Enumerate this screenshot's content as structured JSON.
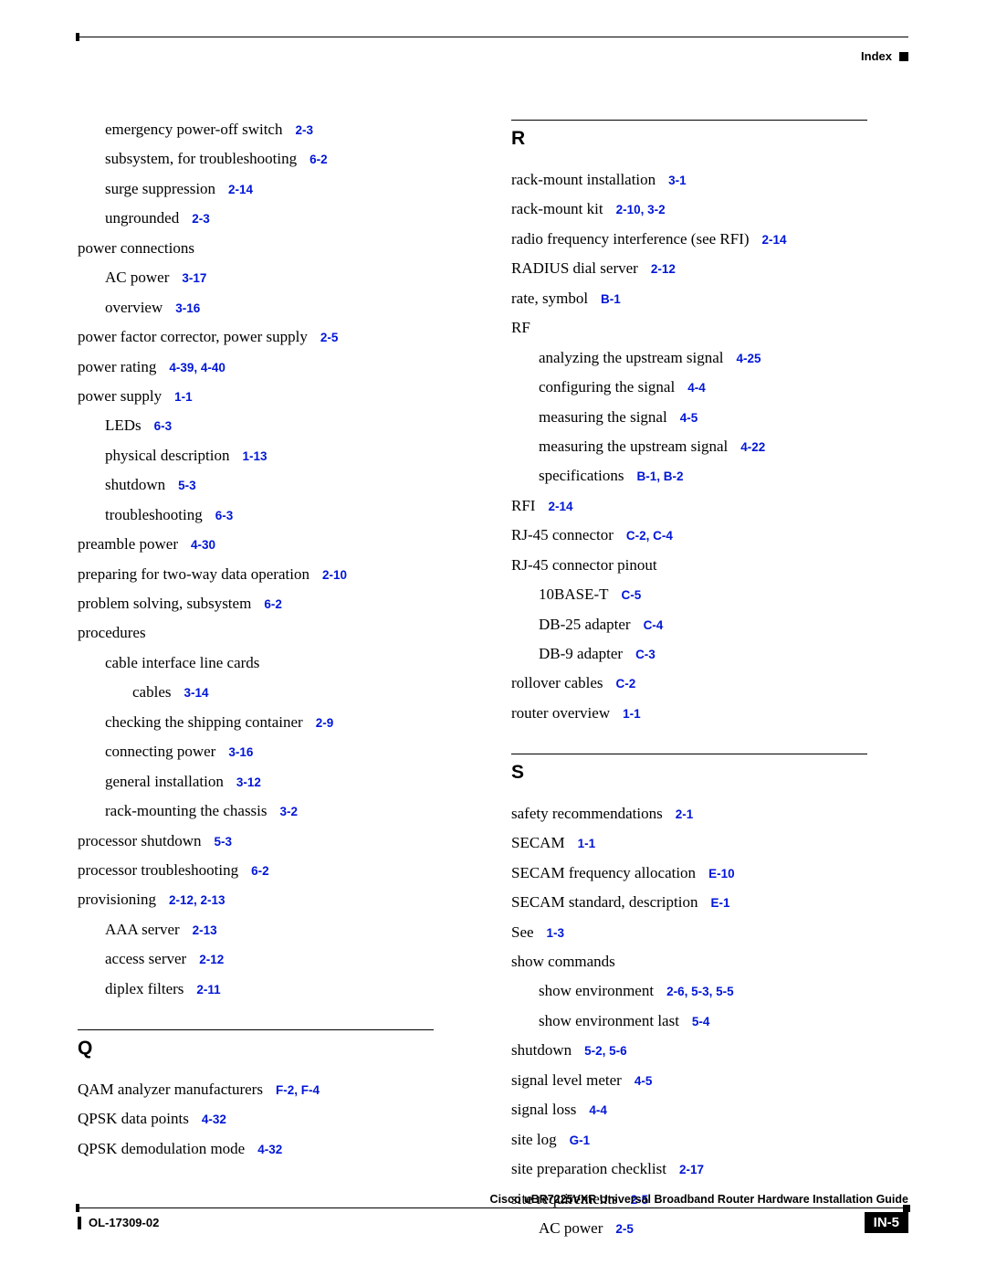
{
  "header": {
    "label": "Index"
  },
  "link_color": "#0016d8",
  "text_color": "#000000",
  "letters": {
    "Q": "Q",
    "R": "R",
    "S": "S"
  },
  "left_initial": [
    {
      "text": "emergency power-off switch",
      "ref": "2-3",
      "indent": 1
    },
    {
      "text": "subsystem, for troubleshooting",
      "ref": "6-2",
      "indent": 1
    },
    {
      "text": "surge suppression",
      "ref": "2-14",
      "indent": 1
    },
    {
      "text": "ungrounded",
      "ref": "2-3",
      "indent": 1
    },
    {
      "text": "power connections",
      "ref": "",
      "indent": 0
    },
    {
      "text": "AC power",
      "ref": "3-17",
      "indent": 1
    },
    {
      "text": "overview",
      "ref": "3-16",
      "indent": 1
    },
    {
      "text": "power factor corrector, power supply",
      "ref": "2-5",
      "indent": 0
    },
    {
      "text": "power rating",
      "ref": "4-39, 4-40",
      "indent": 0
    },
    {
      "text": "power supply",
      "ref": "1-1",
      "indent": 0
    },
    {
      "text": "LEDs",
      "ref": "6-3",
      "indent": 1
    },
    {
      "text": "physical description",
      "ref": "1-13",
      "indent": 1
    },
    {
      "text": "shutdown",
      "ref": "5-3",
      "indent": 1
    },
    {
      "text": "troubleshooting",
      "ref": "6-3",
      "indent": 1
    },
    {
      "text": "preamble power",
      "ref": "4-30",
      "indent": 0
    },
    {
      "text": "preparing for two-way data operation",
      "ref": "2-10",
      "indent": 0
    },
    {
      "text": "problem solving, subsystem",
      "ref": "6-2",
      "indent": 0
    },
    {
      "text": "procedures",
      "ref": "",
      "indent": 0
    },
    {
      "text": "cable interface line cards",
      "ref": "",
      "indent": 1
    },
    {
      "text": "cables",
      "ref": "3-14",
      "indent": 2
    },
    {
      "text": "checking the shipping container",
      "ref": "2-9",
      "indent": 1
    },
    {
      "text": "connecting power",
      "ref": "3-16",
      "indent": 1
    },
    {
      "text": "general installation",
      "ref": "3-12",
      "indent": 1
    },
    {
      "text": "rack-mounting the chassis",
      "ref": "3-2",
      "indent": 1
    },
    {
      "text": "processor shutdown",
      "ref": "5-3",
      "indent": 0
    },
    {
      "text": "processor troubleshooting",
      "ref": "6-2",
      "indent": 0
    },
    {
      "text": "provisioning",
      "ref": "2-12, 2-13",
      "indent": 0
    },
    {
      "text": "AAA server",
      "ref": "2-13",
      "indent": 1
    },
    {
      "text": "access server",
      "ref": "2-12",
      "indent": 1
    },
    {
      "text": "diplex filters",
      "ref": "2-11",
      "indent": 1
    }
  ],
  "left_Q": [
    {
      "text": "QAM analyzer manufacturers",
      "ref": "F-2, F-4",
      "indent": 0
    },
    {
      "text": "QPSK data points",
      "ref": "4-32",
      "indent": 0
    },
    {
      "text": "QPSK demodulation mode",
      "ref": "4-32",
      "indent": 0
    }
  ],
  "right_R": [
    {
      "text": "rack-mount installation",
      "ref": "3-1",
      "indent": 0
    },
    {
      "text": "rack-mount kit",
      "ref": "2-10, 3-2",
      "indent": 0
    },
    {
      "text": "radio frequency interference (see RFI)",
      "ref": "2-14",
      "indent": 0
    },
    {
      "text": "RADIUS dial server",
      "ref": "2-12",
      "indent": 0
    },
    {
      "text": "rate, symbol",
      "ref": "B-1",
      "indent": 0
    },
    {
      "text": "RF",
      "ref": "",
      "indent": 0
    },
    {
      "text": "analyzing the upstream signal",
      "ref": "4-25",
      "indent": 1
    },
    {
      "text": "configuring the signal",
      "ref": "4-4",
      "indent": 1
    },
    {
      "text": "measuring the signal",
      "ref": "4-5",
      "indent": 1
    },
    {
      "text": "measuring the upstream signal",
      "ref": "4-22",
      "indent": 1
    },
    {
      "text": "specifications",
      "ref": "B-1, B-2",
      "indent": 1
    },
    {
      "text": "RFI",
      "ref": "2-14",
      "indent": 0
    },
    {
      "text": "RJ-45 connector",
      "ref": "C-2, C-4",
      "indent": 0
    },
    {
      "text": "RJ-45 connector pinout",
      "ref": "",
      "indent": 0
    },
    {
      "text": "10BASE-T",
      "ref": "C-5",
      "indent": 1
    },
    {
      "text": "DB-25 adapter",
      "ref": "C-4",
      "indent": 1
    },
    {
      "text": "DB-9 adapter",
      "ref": "C-3",
      "indent": 1
    },
    {
      "text": "rollover cables",
      "ref": "C-2",
      "indent": 0
    },
    {
      "text": "router overview",
      "ref": "1-1",
      "indent": 0
    }
  ],
  "right_S": [
    {
      "text": "safety recommendations",
      "ref": "2-1",
      "indent": 0
    },
    {
      "text": "SECAM",
      "ref": "1-1",
      "indent": 0
    },
    {
      "text": "SECAM frequency allocation",
      "ref": "E-10",
      "indent": 0
    },
    {
      "text": "SECAM standard, description",
      "ref": "E-1",
      "indent": 0
    },
    {
      "text": "See",
      "ref": "1-3",
      "indent": 0
    },
    {
      "text": "show commands",
      "ref": "",
      "indent": 0
    },
    {
      "text": "show environment",
      "ref": "2-6, 5-3, 5-5",
      "indent": 1
    },
    {
      "text": "show environment last",
      "ref": "5-4",
      "indent": 1
    },
    {
      "text": "shutdown",
      "ref": "5-2, 5-6",
      "indent": 0
    },
    {
      "text": "signal level meter",
      "ref": "4-5",
      "indent": 0
    },
    {
      "text": "signal loss",
      "ref": "4-4",
      "indent": 0
    },
    {
      "text": "site log",
      "ref": "G-1",
      "indent": 0
    },
    {
      "text": "site preparation checklist",
      "ref": "2-17",
      "indent": 0
    },
    {
      "text": "site requirements",
      "ref": "2-5",
      "indent": 0
    },
    {
      "text": "AC power",
      "ref": "2-5",
      "indent": 1
    }
  ],
  "footer": {
    "title": "Cisco uBR7225VXR Universal Broadband Router Hardware Installation Guide",
    "docnum": "OL-17309-02",
    "pagenum": "IN-5"
  }
}
